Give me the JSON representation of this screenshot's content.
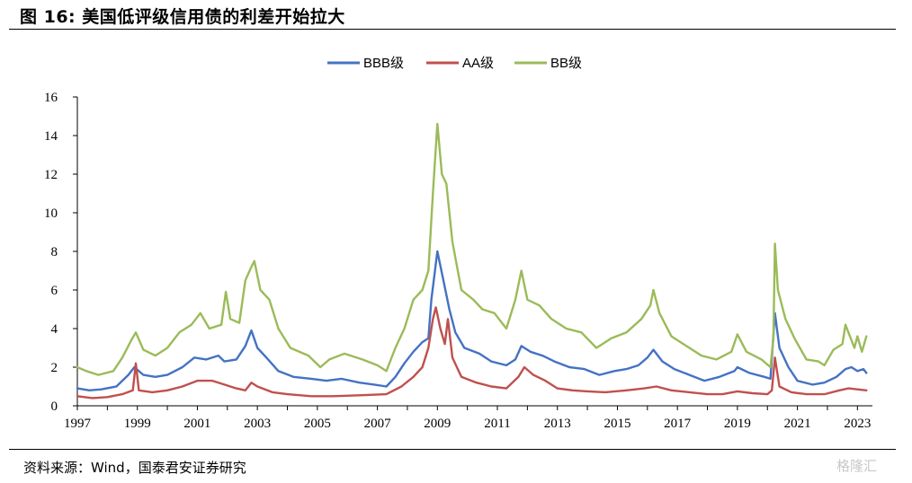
{
  "header": {
    "title": "图 16:  美国低评级信用债的利差开始拉大"
  },
  "footer": {
    "source": "资料来源：Wind，国泰君安证券研究",
    "watermark": "格隆汇"
  },
  "chart_data": {
    "type": "line",
    "title": "",
    "xlabel": "",
    "ylabel": "",
    "xlim": [
      1997,
      2023.5
    ],
    "ylim": [
      0,
      16
    ],
    "yticks": [
      0,
      2,
      4,
      6,
      8,
      10,
      12,
      14,
      16
    ],
    "xticks": [
      1997,
      1999,
      2001,
      2003,
      2005,
      2007,
      2009,
      2011,
      2013,
      2015,
      2017,
      2019,
      2021,
      2023
    ],
    "grid": false,
    "legend": "top-center",
    "series": [
      {
        "name": "BBB级",
        "color": "#4472c4",
        "points": [
          [
            1997,
            0.9
          ],
          [
            1997.4,
            0.8
          ],
          [
            1997.8,
            0.85
          ],
          [
            1998.3,
            1.0
          ],
          [
            1998.7,
            1.6
          ],
          [
            1998.9,
            2.0
          ],
          [
            1999.2,
            1.6
          ],
          [
            1999.6,
            1.5
          ],
          [
            2000.0,
            1.6
          ],
          [
            2000.5,
            2.0
          ],
          [
            2000.9,
            2.5
          ],
          [
            2001.3,
            2.4
          ],
          [
            2001.7,
            2.6
          ],
          [
            2001.9,
            2.3
          ],
          [
            2002.3,
            2.4
          ],
          [
            2002.6,
            3.1
          ],
          [
            2002.8,
            3.9
          ],
          [
            2003.0,
            3.0
          ],
          [
            2003.3,
            2.5
          ],
          [
            2003.7,
            1.8
          ],
          [
            2004.2,
            1.5
          ],
          [
            2004.8,
            1.4
          ],
          [
            2005.3,
            1.3
          ],
          [
            2005.8,
            1.4
          ],
          [
            2006.4,
            1.2
          ],
          [
            2006.9,
            1.1
          ],
          [
            2007.3,
            1.0
          ],
          [
            2007.6,
            1.5
          ],
          [
            2007.9,
            2.2
          ],
          [
            2008.2,
            2.8
          ],
          [
            2008.5,
            3.3
          ],
          [
            2008.7,
            3.5
          ],
          [
            2008.8,
            5.5
          ],
          [
            2009.0,
            8.0
          ],
          [
            2009.2,
            6.5
          ],
          [
            2009.4,
            5.0
          ],
          [
            2009.6,
            3.8
          ],
          [
            2009.9,
            3.0
          ],
          [
            2010.4,
            2.7
          ],
          [
            2010.8,
            2.3
          ],
          [
            2011.3,
            2.1
          ],
          [
            2011.6,
            2.4
          ],
          [
            2011.8,
            3.1
          ],
          [
            2012.1,
            2.8
          ],
          [
            2012.5,
            2.6
          ],
          [
            2012.9,
            2.3
          ],
          [
            2013.4,
            2.0
          ],
          [
            2013.9,
            1.9
          ],
          [
            2014.4,
            1.6
          ],
          [
            2014.9,
            1.8
          ],
          [
            2015.3,
            1.9
          ],
          [
            2015.7,
            2.1
          ],
          [
            2016.0,
            2.5
          ],
          [
            2016.2,
            2.9
          ],
          [
            2016.5,
            2.3
          ],
          [
            2016.9,
            1.9
          ],
          [
            2017.4,
            1.6
          ],
          [
            2017.9,
            1.3
          ],
          [
            2018.4,
            1.5
          ],
          [
            2018.9,
            1.8
          ],
          [
            2019.0,
            2.0
          ],
          [
            2019.4,
            1.7
          ],
          [
            2019.9,
            1.5
          ],
          [
            2020.1,
            1.4
          ],
          [
            2020.25,
            4.8
          ],
          [
            2020.4,
            3.0
          ],
          [
            2020.7,
            2.0
          ],
          [
            2021.0,
            1.3
          ],
          [
            2021.5,
            1.1
          ],
          [
            2021.9,
            1.2
          ],
          [
            2022.3,
            1.5
          ],
          [
            2022.6,
            1.9
          ],
          [
            2022.8,
            2.0
          ],
          [
            2023.0,
            1.8
          ],
          [
            2023.2,
            1.9
          ],
          [
            2023.3,
            1.7
          ]
        ]
      },
      {
        "name": "AA级",
        "color": "#c0504d",
        "points": [
          [
            1997,
            0.5
          ],
          [
            1997.5,
            0.4
          ],
          [
            1998.0,
            0.45
          ],
          [
            1998.5,
            0.6
          ],
          [
            1998.85,
            0.8
          ],
          [
            1998.95,
            2.2
          ],
          [
            1999.05,
            0.8
          ],
          [
            1999.5,
            0.7
          ],
          [
            2000.0,
            0.8
          ],
          [
            2000.5,
            1.0
          ],
          [
            2001.0,
            1.3
          ],
          [
            2001.5,
            1.3
          ],
          [
            2001.9,
            1.1
          ],
          [
            2002.3,
            0.9
          ],
          [
            2002.6,
            0.8
          ],
          [
            2002.8,
            1.2
          ],
          [
            2003.0,
            1.0
          ],
          [
            2003.5,
            0.7
          ],
          [
            2004.0,
            0.6
          ],
          [
            2004.8,
            0.5
          ],
          [
            2005.5,
            0.5
          ],
          [
            2006.5,
            0.55
          ],
          [
            2007.3,
            0.6
          ],
          [
            2007.8,
            1.0
          ],
          [
            2008.2,
            1.5
          ],
          [
            2008.5,
            2.0
          ],
          [
            2008.7,
            3.0
          ],
          [
            2008.85,
            4.5
          ],
          [
            2008.95,
            5.1
          ],
          [
            2009.1,
            4.0
          ],
          [
            2009.25,
            3.2
          ],
          [
            2009.35,
            4.5
          ],
          [
            2009.5,
            2.5
          ],
          [
            2009.8,
            1.5
          ],
          [
            2010.3,
            1.2
          ],
          [
            2010.8,
            1.0
          ],
          [
            2011.3,
            0.9
          ],
          [
            2011.7,
            1.5
          ],
          [
            2011.9,
            2.0
          ],
          [
            2012.2,
            1.6
          ],
          [
            2012.6,
            1.3
          ],
          [
            2013.0,
            0.9
          ],
          [
            2013.5,
            0.8
          ],
          [
            2014.0,
            0.75
          ],
          [
            2014.6,
            0.7
          ],
          [
            2015.3,
            0.8
          ],
          [
            2015.9,
            0.9
          ],
          [
            2016.3,
            1.0
          ],
          [
            2016.8,
            0.8
          ],
          [
            2017.4,
            0.7
          ],
          [
            2018.0,
            0.6
          ],
          [
            2018.5,
            0.6
          ],
          [
            2019.0,
            0.75
          ],
          [
            2019.5,
            0.65
          ],
          [
            2020.0,
            0.6
          ],
          [
            2020.15,
            0.8
          ],
          [
            2020.25,
            2.5
          ],
          [
            2020.4,
            1.0
          ],
          [
            2020.8,
            0.7
          ],
          [
            2021.3,
            0.6
          ],
          [
            2021.9,
            0.6
          ],
          [
            2022.4,
            0.8
          ],
          [
            2022.7,
            0.9
          ],
          [
            2023.0,
            0.85
          ],
          [
            2023.3,
            0.8
          ]
        ]
      },
      {
        "name": "BB级",
        "color": "#9bbb59",
        "points": [
          [
            1997,
            2.0
          ],
          [
            1997.3,
            1.8
          ],
          [
            1997.7,
            1.6
          ],
          [
            1998.2,
            1.8
          ],
          [
            1998.5,
            2.5
          ],
          [
            1998.8,
            3.4
          ],
          [
            1998.95,
            3.8
          ],
          [
            1999.2,
            2.9
          ],
          [
            1999.6,
            2.6
          ],
          [
            2000.0,
            3.0
          ],
          [
            2000.4,
            3.8
          ],
          [
            2000.8,
            4.2
          ],
          [
            2001.1,
            4.8
          ],
          [
            2001.4,
            4.0
          ],
          [
            2001.8,
            4.2
          ],
          [
            2001.95,
            5.9
          ],
          [
            2002.1,
            4.5
          ],
          [
            2002.4,
            4.3
          ],
          [
            2002.6,
            6.5
          ],
          [
            2002.8,
            7.2
          ],
          [
            2002.9,
            7.5
          ],
          [
            2003.1,
            6.0
          ],
          [
            2003.4,
            5.5
          ],
          [
            2003.7,
            4.0
          ],
          [
            2004.1,
            3.0
          ],
          [
            2004.7,
            2.6
          ],
          [
            2005.1,
            2.0
          ],
          [
            2005.4,
            2.4
          ],
          [
            2005.9,
            2.7
          ],
          [
            2006.5,
            2.4
          ],
          [
            2007.0,
            2.1
          ],
          [
            2007.3,
            1.8
          ],
          [
            2007.6,
            3.0
          ],
          [
            2007.9,
            4.0
          ],
          [
            2008.2,
            5.5
          ],
          [
            2008.5,
            6.0
          ],
          [
            2008.7,
            7.0
          ],
          [
            2008.85,
            11.0
          ],
          [
            2009.0,
            14.6
          ],
          [
            2009.15,
            12.0
          ],
          [
            2009.3,
            11.5
          ],
          [
            2009.5,
            8.5
          ],
          [
            2009.8,
            6.0
          ],
          [
            2010.2,
            5.5
          ],
          [
            2010.5,
            5.0
          ],
          [
            2010.9,
            4.8
          ],
          [
            2011.3,
            4.0
          ],
          [
            2011.6,
            5.5
          ],
          [
            2011.8,
            7.0
          ],
          [
            2012.0,
            5.5
          ],
          [
            2012.4,
            5.2
          ],
          [
            2012.8,
            4.5
          ],
          [
            2013.3,
            4.0
          ],
          [
            2013.8,
            3.8
          ],
          [
            2014.3,
            3.0
          ],
          [
            2014.8,
            3.5
          ],
          [
            2015.3,
            3.8
          ],
          [
            2015.8,
            4.5
          ],
          [
            2016.1,
            5.2
          ],
          [
            2016.2,
            6.0
          ],
          [
            2016.4,
            4.8
          ],
          [
            2016.8,
            3.6
          ],
          [
            2017.3,
            3.1
          ],
          [
            2017.8,
            2.6
          ],
          [
            2018.3,
            2.4
          ],
          [
            2018.8,
            2.8
          ],
          [
            2019.0,
            3.7
          ],
          [
            2019.3,
            2.8
          ],
          [
            2019.8,
            2.4
          ],
          [
            2020.1,
            2.0
          ],
          [
            2020.2,
            3.5
          ],
          [
            2020.25,
            8.4
          ],
          [
            2020.35,
            6.0
          ],
          [
            2020.6,
            4.5
          ],
          [
            2020.9,
            3.5
          ],
          [
            2021.3,
            2.4
          ],
          [
            2021.7,
            2.3
          ],
          [
            2021.9,
            2.1
          ],
          [
            2022.2,
            2.9
          ],
          [
            2022.5,
            3.2
          ],
          [
            2022.6,
            4.2
          ],
          [
            2022.9,
            3.0
          ],
          [
            2023.0,
            3.6
          ],
          [
            2023.15,
            2.8
          ],
          [
            2023.3,
            3.6
          ]
        ]
      }
    ]
  }
}
